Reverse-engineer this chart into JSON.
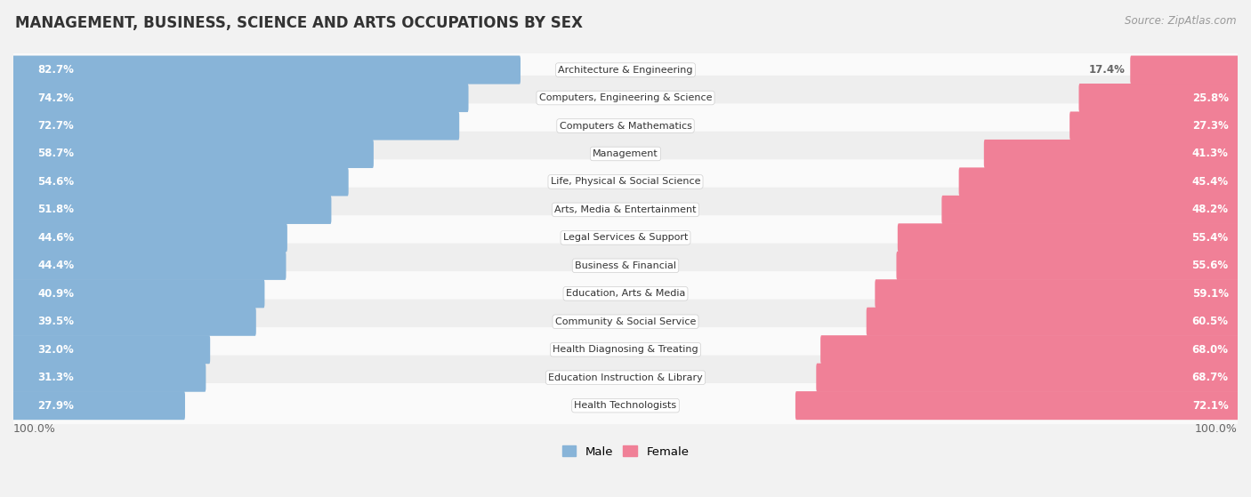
{
  "title": "MANAGEMENT, BUSINESS, SCIENCE AND ARTS OCCUPATIONS BY SEX",
  "source": "Source: ZipAtlas.com",
  "categories": [
    "Architecture & Engineering",
    "Computers, Engineering & Science",
    "Computers & Mathematics",
    "Management",
    "Life, Physical & Social Science",
    "Arts, Media & Entertainment",
    "Legal Services & Support",
    "Business & Financial",
    "Education, Arts & Media",
    "Community & Social Service",
    "Health Diagnosing & Treating",
    "Education Instruction & Library",
    "Health Technologists"
  ],
  "male_pct": [
    82.7,
    74.2,
    72.7,
    58.7,
    54.6,
    51.8,
    44.6,
    44.4,
    40.9,
    39.5,
    32.0,
    31.3,
    27.9
  ],
  "female_pct": [
    17.4,
    25.8,
    27.3,
    41.3,
    45.4,
    48.2,
    55.4,
    55.6,
    59.1,
    60.5,
    68.0,
    68.7,
    72.1
  ],
  "male_color": "#88b4d8",
  "female_color": "#f08097",
  "label_color_on_bar": "#ffffff",
  "label_color_outside": "#666666",
  "bg_color": "#f2f2f2",
  "row_bg_even": "#fafafa",
  "row_bg_odd": "#eeeeee",
  "title_fontsize": 12,
  "source_fontsize": 8.5,
  "bar_label_fontsize": 8.5,
  "category_fontsize": 8,
  "legend_fontsize": 9.5,
  "footer_fontsize": 9
}
